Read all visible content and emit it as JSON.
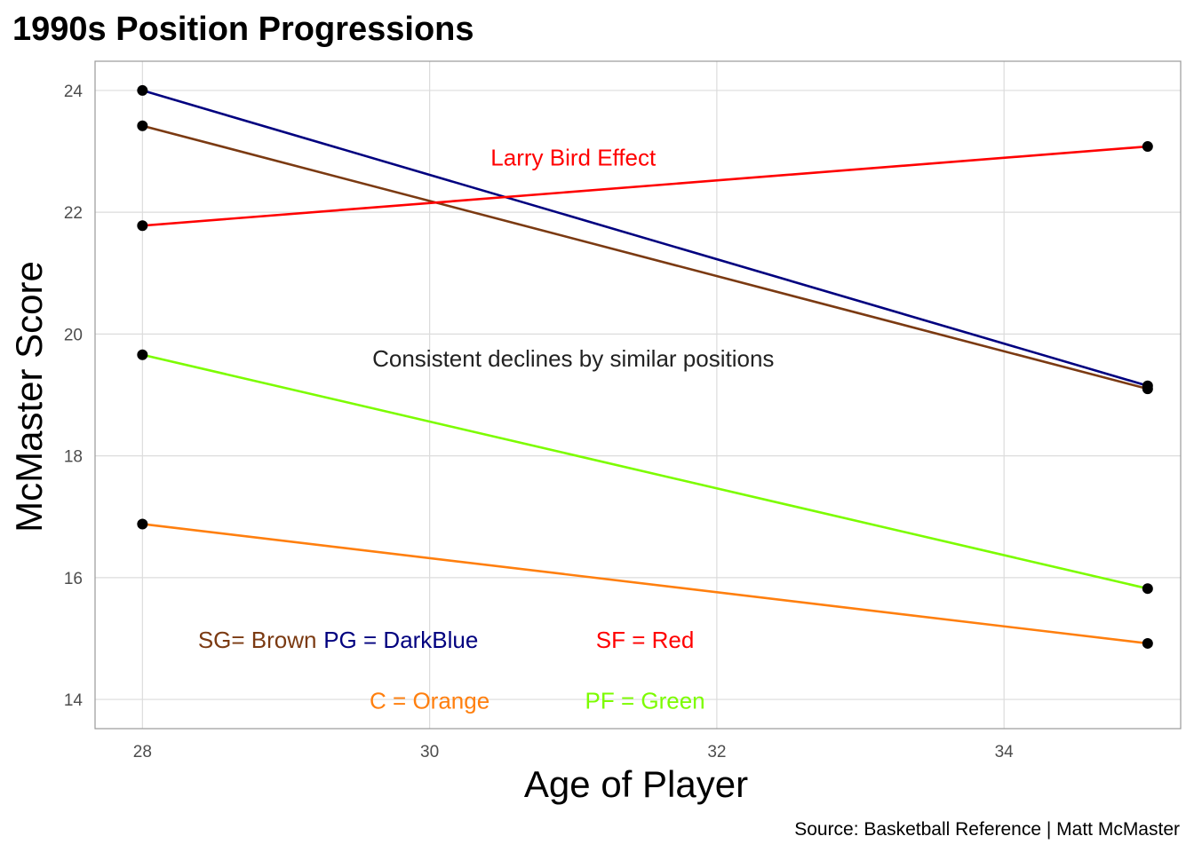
{
  "chart_data": {
    "type": "line",
    "title": "1990s Position Progressions",
    "xlabel": "Age of Player",
    "ylabel": "McMaster Score",
    "caption": "Source: Basketball Reference | Matt McMaster",
    "xlim": [
      27.67,
      35.23
    ],
    "ylim": [
      13.52,
      24.48
    ],
    "x_ticks": [
      28,
      30,
      32,
      34
    ],
    "y_ticks": [
      14,
      16,
      18,
      20,
      22,
      24
    ],
    "grid": true,
    "series": [
      {
        "color": "#00007F",
        "points": [
          [
            28,
            24.0
          ],
          [
            35,
            19.15
          ]
        ]
      },
      {
        "color": "#7B3A12",
        "points": [
          [
            28,
            23.42
          ],
          [
            35,
            19.1
          ]
        ]
      },
      {
        "color": "#FF0000",
        "points": [
          [
            28,
            21.78
          ],
          [
            35,
            23.08
          ]
        ]
      },
      {
        "color": "#7CFC00",
        "points": [
          [
            28,
            19.66
          ],
          [
            35,
            15.82
          ]
        ]
      },
      {
        "color": "#FF7F0E",
        "points": [
          [
            28,
            16.88
          ],
          [
            35,
            14.92
          ]
        ]
      }
    ],
    "annotations": [
      {
        "text": "Larry Bird Effect",
        "x": 31.0,
        "y": 22.9,
        "color": "#FF0000"
      },
      {
        "text": "Consistent declines by similar positions",
        "x": 31.0,
        "y": 19.6,
        "color": "#222222"
      },
      {
        "text": "SG= Brown",
        "x": 28.8,
        "y": 14.98,
        "color": "#7B3A12"
      },
      {
        "text": "PG = DarkBlue",
        "x": 29.8,
        "y": 14.98,
        "color": "#00007F"
      },
      {
        "text": "SF = Red",
        "x": 31.5,
        "y": 14.98,
        "color": "#FF0000"
      },
      {
        "text": "C = Orange",
        "x": 30.0,
        "y": 13.98,
        "color": "#FF7F0E"
      },
      {
        "text": "PF = Green",
        "x": 31.5,
        "y": 13.98,
        "color": "#7CFC00"
      }
    ]
  }
}
